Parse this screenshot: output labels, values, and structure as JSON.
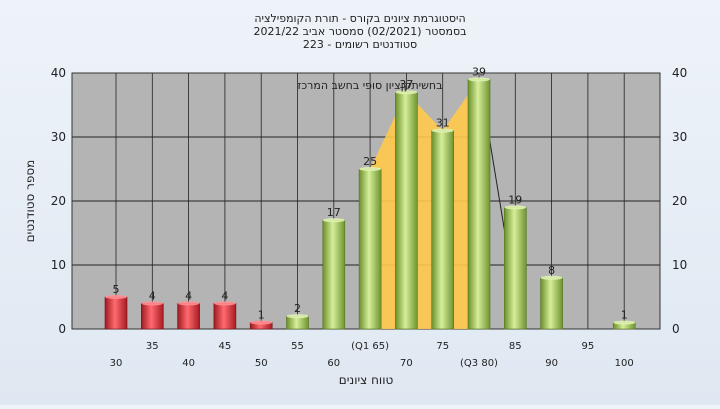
{
  "chart_data": {
    "type": "bar",
    "title_lines": [
      "היסטוגרמת ציונים בקורס - תורת הקומפילציה",
      "בסמסטר  (02/2021)  סמסטר אביב 2021/22",
      "סטודנטים רשומים - 223"
    ],
    "xlabel": "טווח ציונים",
    "ylabel": "מספר סטודנטים",
    "ylim": [
      0,
      40
    ],
    "y_ticks": [
      0,
      10,
      20,
      30,
      40
    ],
    "grid": true,
    "annotation": "בחשיתקןציון סופי בחשב המרכז",
    "x_tick_labels_row1": [
      "35",
      "45",
      "55",
      "(Q1 65)",
      "75",
      "85",
      "95"
    ],
    "x_tick_labels_row2": [
      "30",
      "40",
      "50",
      "60",
      "70",
      "(Q3 80)",
      "90",
      "100"
    ],
    "bins": [
      30,
      35,
      40,
      45,
      50,
      55,
      60,
      65,
      70,
      75,
      80,
      85,
      90,
      95,
      100
    ],
    "values": [
      5,
      4,
      4,
      4,
      1,
      2,
      17,
      25,
      37,
      31,
      39,
      19,
      8,
      0,
      1
    ],
    "value_labels": [
      "5",
      "4",
      "4",
      "4",
      "1",
      "2",
      "17",
      "25",
      "37",
      "31",
      "39",
      "19",
      "8",
      "",
      "1"
    ],
    "bar_colors": [
      "red",
      "red",
      "red",
      "red",
      "red",
      "green",
      "green",
      "green",
      "green",
      "green",
      "green",
      "green",
      "green",
      "green",
      "green"
    ],
    "colors": {
      "red": "#e0323a",
      "green": "#9cc24f",
      "iqr_band": "#ffc94a",
      "plot_bg": "#b4b4b4",
      "grid": "#222222"
    },
    "iqr_band": {
      "from_bin": 65,
      "to_bin": 80
    }
  }
}
